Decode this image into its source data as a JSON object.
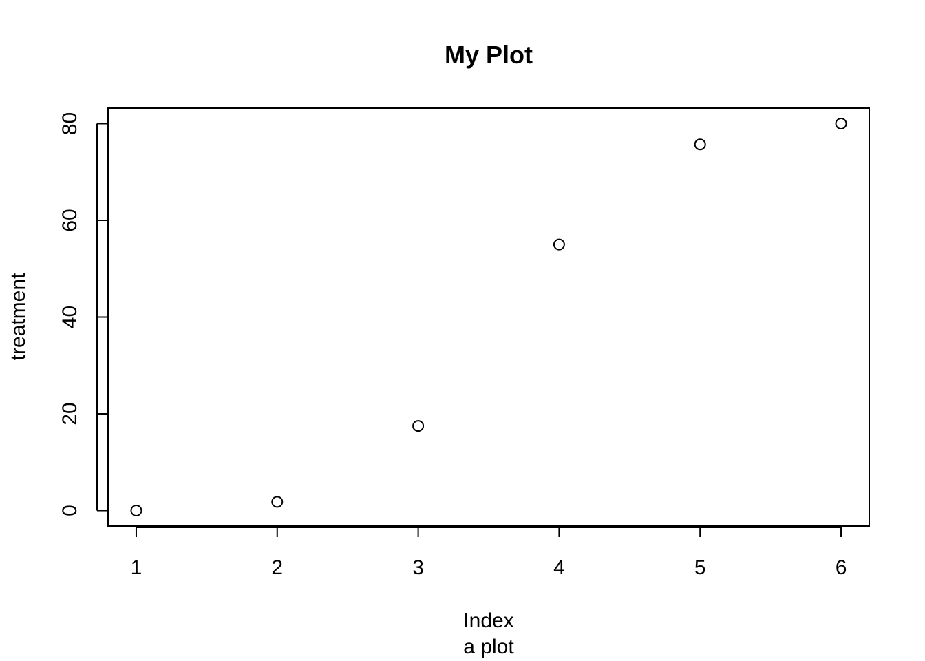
{
  "chart_data": {
    "type": "scatter",
    "title": "My Plot",
    "xlabel": "Index",
    "sub": "a plot",
    "ylabel": "treatment",
    "x": [
      1,
      2,
      3,
      4,
      5,
      6
    ],
    "y": [
      0,
      1.8,
      17.5,
      55,
      75.7,
      80
    ],
    "xlim": [
      0.8,
      6.2
    ],
    "ylim": [
      -3.2,
      83.2
    ],
    "xticks": [
      1,
      2,
      3,
      4,
      5,
      6
    ],
    "yticks": [
      0,
      20,
      40,
      60,
      80
    ],
    "grid": false,
    "marker": "open-circle",
    "colors": {
      "foreground": "#000000",
      "background": "#ffffff"
    }
  }
}
